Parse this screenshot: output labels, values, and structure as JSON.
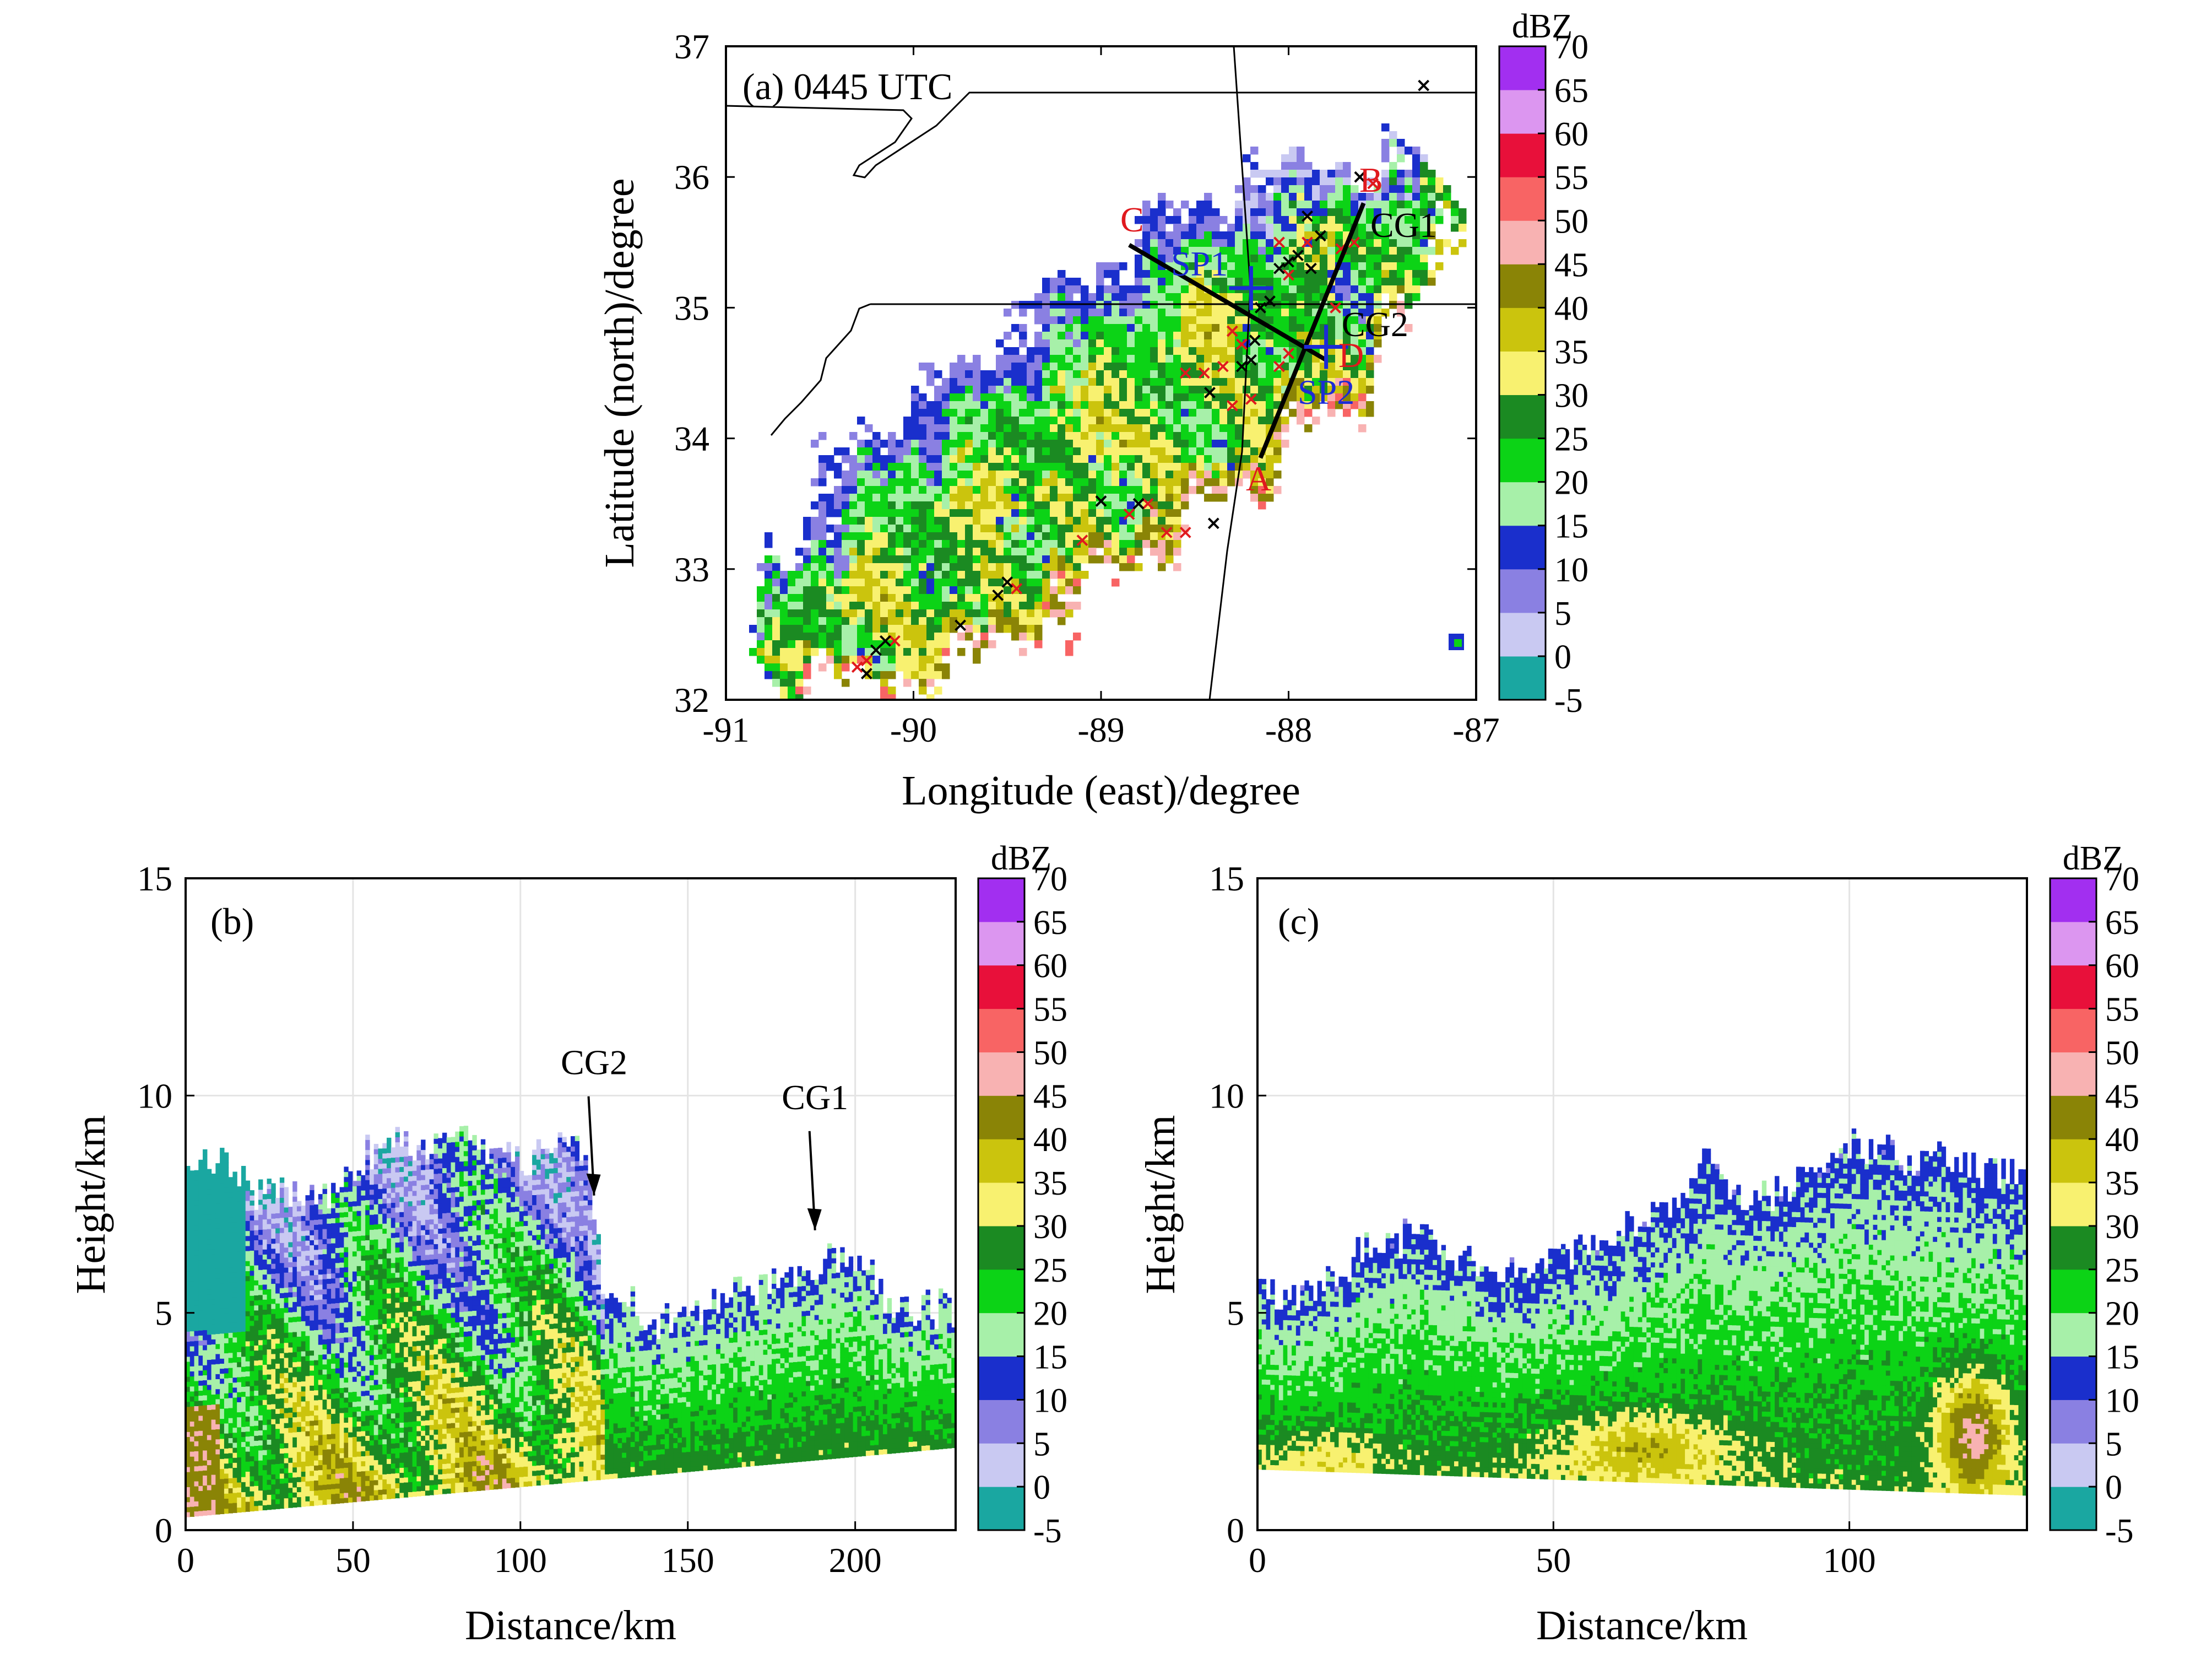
{
  "colorbar": {
    "unit": "dBZ",
    "levels": [
      -5,
      0,
      5,
      10,
      15,
      20,
      25,
      30,
      35,
      40,
      45,
      50,
      55,
      60,
      65,
      70
    ],
    "colors": [
      "#1aa7a1",
      "#c9c9f2",
      "#8a80e2",
      "#1a2fcc",
      "#a7f0a9",
      "#0cd316",
      "#1b8a22",
      "#f8f170",
      "#cbc40d",
      "#8a8406",
      "#f8b2b2",
      "#f86464",
      "#e8103a",
      "#dc96f0",
      "#a22ff0"
    ]
  },
  "chart_data": [
    {
      "type": "heatmap",
      "panel_label": "(a) 0445 UTC",
      "xlabel": "Longitude (east)/degree",
      "ylabel": "Latitude (north)/degree",
      "xlim": [
        -91,
        -87
      ],
      "ylim": [
        32,
        37
      ],
      "x_ticks": [
        "-91",
        "-90",
        "-89",
        "-88",
        "-87"
      ],
      "y_ticks": [
        "32",
        "33",
        "34",
        "35",
        "36",
        "37"
      ],
      "grid": false,
      "field": "radar reflectivity (dBZ), band oriented SW–NE",
      "cross_sections": [
        {
          "start": "A",
          "end": "B",
          "start_lonlat": [
            -88.15,
            33.85
          ],
          "end_lonlat": [
            -87.6,
            35.8
          ]
        },
        {
          "start": "C",
          "end": "D",
          "start_lonlat": [
            -88.85,
            35.48
          ],
          "end_lonlat": [
            -87.8,
            34.6
          ]
        }
      ],
      "markers": [
        {
          "label": "SP1",
          "type": "blue-plus",
          "lonlat": [
            -88.2,
            35.15
          ]
        },
        {
          "label": "SP2",
          "type": "blue-plus",
          "lonlat": [
            -87.8,
            34.7
          ]
        },
        {
          "label": "CG1",
          "lonlat": [
            -87.65,
            35.58
          ]
        },
        {
          "label": "CG2",
          "lonlat": [
            -87.82,
            34.98
          ]
        }
      ],
      "lightning_black": [
        [
          -87.28,
          36.7
        ],
        [
          -87.62,
          36.0
        ],
        [
          -87.9,
          35.7
        ],
        [
          -87.83,
          35.55
        ],
        [
          -87.95,
          35.4
        ],
        [
          -88.05,
          35.3
        ],
        [
          -88.0,
          35.35
        ],
        [
          -87.88,
          35.3
        ],
        [
          -88.1,
          35.05
        ],
        [
          -88.15,
          35.0
        ],
        [
          -88.18,
          34.75
        ],
        [
          -88.2,
          34.6
        ],
        [
          -88.25,
          34.55
        ],
        [
          -88.42,
          34.35
        ],
        [
          -88.4,
          33.35
        ],
        [
          -89.0,
          33.52
        ],
        [
          -88.8,
          33.5
        ],
        [
          -89.5,
          32.9
        ],
        [
          -89.55,
          32.8
        ],
        [
          -89.75,
          32.57
        ],
        [
          -90.15,
          32.45
        ],
        [
          -90.2,
          32.38
        ],
        [
          -90.25,
          32.2
        ]
      ],
      "lightning_red": [
        [
          -87.55,
          35.95
        ],
        [
          -87.65,
          35.5
        ],
        [
          -87.72,
          35.45
        ],
        [
          -88.05,
          35.5
        ],
        [
          -88.0,
          35.25
        ],
        [
          -87.9,
          35.5
        ],
        [
          -87.75,
          35.0
        ],
        [
          -88.3,
          34.82
        ],
        [
          -88.25,
          34.72
        ],
        [
          -88.35,
          34.55
        ],
        [
          -88.45,
          34.5
        ],
        [
          -88.55,
          34.5
        ],
        [
          -88.2,
          34.3
        ],
        [
          -88.3,
          34.25
        ],
        [
          -88.0,
          34.65
        ],
        [
          -88.05,
          34.55
        ],
        [
          -88.65,
          33.28
        ],
        [
          -88.55,
          33.28
        ],
        [
          -88.75,
          33.5
        ],
        [
          -88.85,
          33.42
        ],
        [
          -89.1,
          33.22
        ],
        [
          -89.45,
          32.85
        ],
        [
          -90.1,
          32.45
        ],
        [
          -90.25,
          32.3
        ],
        [
          -90.3,
          32.25
        ]
      ],
      "annotation_labels": [
        "A",
        "B",
        "C",
        "D",
        "SP1",
        "SP2",
        "CG1",
        "CG2"
      ]
    },
    {
      "type": "heatmap",
      "panel_label": "(b)",
      "xlabel": "Distance/km",
      "ylabel": "Height/km",
      "xlim": [
        0,
        230
      ],
      "ylim": [
        0,
        15
      ],
      "x_ticks": [
        "0",
        "50",
        "100",
        "150",
        "200"
      ],
      "y_ticks": [
        "0",
        "5",
        "10",
        "15"
      ],
      "grid": true,
      "field": "reflectivity cross section along A–B",
      "echo_top_km": {
        "x": [
          0,
          10,
          20,
          30,
          40,
          50,
          60,
          70,
          80,
          90,
          100,
          110,
          118,
          125,
          130,
          140,
          150,
          160,
          170,
          180,
          190,
          200,
          210,
          220,
          230
        ],
        "y": [
          8.2,
          8.5,
          7.8,
          7.8,
          7.5,
          8.3,
          9.0,
          8.9,
          9.0,
          8.8,
          8.5,
          8.6,
          8.8,
          5.6,
          5.4,
          4.8,
          5.0,
          5.2,
          5.5,
          5.9,
          6.2,
          6.3,
          5.2,
          5.1,
          5.0
        ]
      },
      "base_km": {
        "x": [
          0,
          230
        ],
        "y": [
          0.3,
          1.9
        ]
      },
      "annotations": [
        {
          "text": "CG2",
          "x_km": 122,
          "arrow_to_height_km": 7.7
        },
        {
          "text": "CG1",
          "x_km": 188,
          "arrow_to_height_km": 6.9
        }
      ]
    },
    {
      "type": "heatmap",
      "panel_label": "(c)",
      "xlabel": "Distance/km",
      "ylabel": "Height/km",
      "xlim": [
        0,
        130
      ],
      "ylim": [
        0,
        15
      ],
      "x_ticks": [
        "0",
        "50",
        "100"
      ],
      "y_ticks": [
        "0",
        "5",
        "10",
        "15"
      ],
      "grid": true,
      "field": "reflectivity cross section along C–D",
      "echo_top_km": {
        "x": [
          0,
          10,
          20,
          30,
          40,
          50,
          60,
          70,
          75,
          80,
          90,
          100,
          110,
          118,
          125,
          130
        ],
        "y": [
          5.4,
          5.3,
          6.7,
          6.6,
          6.0,
          6.1,
          6.8,
          7.5,
          8.5,
          7.6,
          7.8,
          8.9,
          8.5,
          8.4,
          8.2,
          8.1
        ]
      },
      "base_km": {
        "x": [
          0,
          130
        ],
        "y": [
          1.4,
          0.8
        ]
      },
      "max_core": {
        "x_km": 121,
        "height_km": 2.0,
        "value_dbz": 45
      }
    }
  ]
}
